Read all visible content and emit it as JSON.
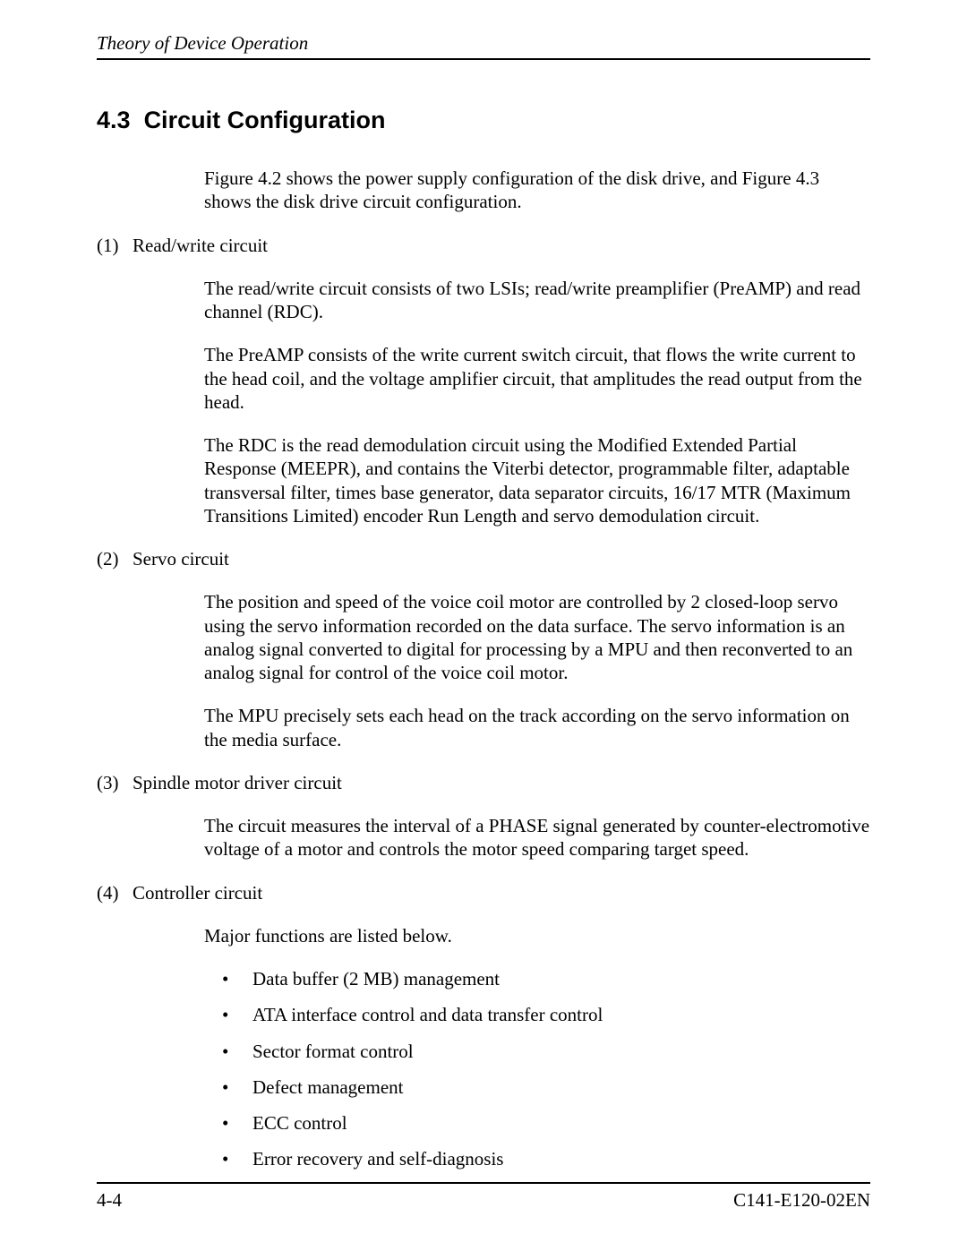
{
  "header": {
    "title": "Theory of Device Operation"
  },
  "section": {
    "number": "4.3",
    "title": "Circuit Configuration",
    "intro": "Figure 4.2 shows the power supply configuration of the disk drive, and Figure 4.3 shows the disk drive circuit configuration."
  },
  "subsections": [
    {
      "num": "(1)",
      "title": "Read/write circuit",
      "paras": [
        "The read/write circuit consists of two LSIs; read/write preamplifier (PreAMP) and read channel (RDC).",
        "The PreAMP consists of the write current switch circuit, that flows the write current to the head coil, and the voltage amplifier circuit, that amplitudes the read output from the head.",
        "The RDC is the read demodulation circuit using the Modified Extended Partial Response (MEEPR), and contains the Viterbi detector, programmable filter, adaptable transversal filter, times base generator, data separator circuits, 16/17 MTR (Maximum Transitions Limited) encoder Run Length and servo demodulation circuit."
      ]
    },
    {
      "num": "(2)",
      "title": "Servo circuit",
      "paras": [
        "The position and speed of the voice coil motor are controlled by 2 closed-loop servo using the servo information recorded on the data surface.  The servo information is an analog signal converted to digital for processing by a MPU and then reconverted to an analog signal for control of the voice coil motor.",
        "The MPU precisely sets each head on the track according on the servo information on the media surface."
      ]
    },
    {
      "num": "(3)",
      "title": "Spindle motor driver circuit",
      "paras": [
        "The circuit measures the interval of a PHASE signal generated by counter-electromotive voltage of a motor and controls the motor speed comparing target speed."
      ]
    },
    {
      "num": "(4)",
      "title": "Controller circuit",
      "paras": [
        "Major functions are listed below."
      ],
      "bullets": [
        "Data buffer (2 MB) management",
        "ATA interface control and data transfer control",
        "Sector format control",
        "Defect management",
        "ECC control",
        "Error recovery and self-diagnosis"
      ]
    }
  ],
  "footer": {
    "page_number": "4-4",
    "doc_id": "C141-E120-02EN"
  }
}
